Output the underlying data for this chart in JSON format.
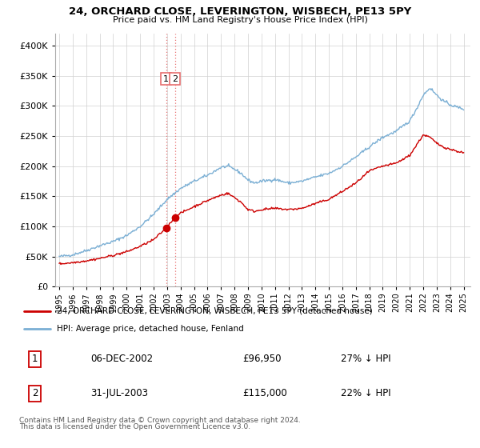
{
  "title": "24, ORCHARD CLOSE, LEVERINGTON, WISBECH, PE13 5PY",
  "subtitle": "Price paid vs. HM Land Registry's House Price Index (HPI)",
  "legend_line1": "24, ORCHARD CLOSE, LEVERINGTON, WISBECH, PE13 5PY (detached house)",
  "legend_line2": "HPI: Average price, detached house, Fenland",
  "transactions": [
    {
      "label": "1",
      "date": "06-DEC-2002",
      "price": "£96,950",
      "pct": "27% ↓ HPI",
      "x_year": 2002.92,
      "y_price": 96950
    },
    {
      "label": "2",
      "date": "31-JUL-2003",
      "price": "£115,000",
      "pct": "22% ↓ HPI",
      "x_year": 2003.58,
      "y_price": 115000
    }
  ],
  "footnote1": "Contains HM Land Registry data © Crown copyright and database right 2024.",
  "footnote2": "This data is licensed under the Open Government Licence v3.0.",
  "hpi_color": "#7bafd4",
  "price_color": "#cc0000",
  "vline_color": "#e87070",
  "ylim": [
    0,
    420000
  ],
  "yticks": [
    0,
    50000,
    100000,
    150000,
    200000,
    250000,
    300000,
    350000,
    400000
  ],
  "xmin": 1994.7,
  "xmax": 2025.5,
  "hpi_anchors_x": [
    1995,
    1996,
    1997,
    1998,
    1999,
    2000,
    2001,
    2002,
    2003,
    2004,
    2005,
    2006,
    2007,
    2007.5,
    2008,
    2008.5,
    2009,
    2009.5,
    2010,
    2011,
    2012,
    2013,
    2014,
    2015,
    2016,
    2017,
    2018,
    2019,
    2020,
    2021,
    2021.5,
    2022,
    2022.5,
    2023,
    2023.5,
    2024,
    2024.5,
    2025
  ],
  "hpi_anchors_y": [
    50000,
    53000,
    60000,
    68000,
    75000,
    85000,
    100000,
    120000,
    145000,
    163000,
    175000,
    185000,
    198000,
    200000,
    195000,
    188000,
    177000,
    172000,
    175000,
    178000,
    172000,
    175000,
    182000,
    188000,
    200000,
    215000,
    232000,
    248000,
    258000,
    275000,
    295000,
    318000,
    330000,
    318000,
    308000,
    302000,
    298000,
    295000
  ],
  "price_anchors_x": [
    1995,
    1996,
    1997,
    1998,
    1999,
    2000,
    2001,
    2002,
    2002.92,
    2003,
    2003.58,
    2004,
    2005,
    2006,
    2007,
    2007.5,
    2008,
    2008.5,
    2009,
    2009.5,
    2010,
    2011,
    2012,
    2013,
    2014,
    2015,
    2016,
    2017,
    2018,
    2019,
    2020,
    2021,
    2021.5,
    2022,
    2022.5,
    2023,
    2023.5,
    2024,
    2024.5,
    2025
  ],
  "price_anchors_y": [
    38000,
    40000,
    43000,
    47000,
    52000,
    58000,
    67000,
    78000,
    96950,
    100000,
    115000,
    122000,
    133000,
    143000,
    152000,
    155000,
    148000,
    140000,
    128000,
    125000,
    128000,
    130000,
    128000,
    130000,
    138000,
    145000,
    158000,
    172000,
    192000,
    200000,
    205000,
    218000,
    235000,
    252000,
    248000,
    238000,
    232000,
    228000,
    225000,
    222000
  ]
}
